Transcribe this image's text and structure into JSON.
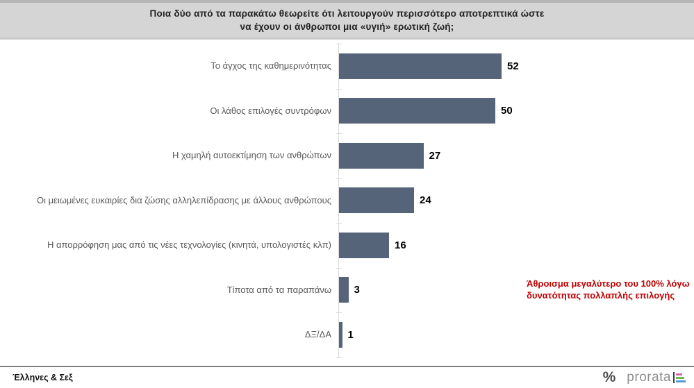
{
  "title": {
    "line1": "Ποια  δύο από τα παρακάτω θεωρείτε ότι λειτουργούν περισσότερο αποτρεπτικά ώστε",
    "line2": "να έχουν οι άνθρωποι μια «υγιή» ερωτική ζωή;"
  },
  "chart_data": {
    "type": "bar",
    "orientation": "horizontal",
    "title": "Ποια δύο από τα παρακάτω θεωρείτε ότι λειτουργούν περισσότερο αποτρεπτικά ώστε να έχουν οι άνθρωποι μια «υγιή» ερωτική ζωή;",
    "categories": [
      "Το άγχος της καθημερινότητας",
      "Οι λάθος επιλογές συντρόφων",
      "Η χαμηλή αυτοεκτίμηση των ανθρώπων",
      "Οι μειωμένες ευκαιρίες δια ζώσης αλληλεπίδρασης με άλλους ανθρώπους",
      "Η απορρόφηση μας από τις νέες τεχνολογίες (κινητά, υπολογιστές κλπ)",
      "Τίποτα από τα παραπάνω",
      "ΔΞ/ΔΑ"
    ],
    "values": [
      52,
      50,
      27,
      24,
      16,
      3,
      1
    ],
    "xlim": [
      0,
      57
    ],
    "grid": false,
    "legend": false,
    "value_labels": true,
    "bar_color": "#566479",
    "category_label_color": "#595959",
    "value_label_color": "#000000",
    "annotation": "Άθροισμα μεγαλύτερο του 100% λόγω δυνατότητας πολλαπλής επιλογής"
  },
  "annotation": {
    "line1": "Άθροισμα μεγαλύτερο του 100% λόγω",
    "line2": "δυνατότητας πολλαπλής επιλογής",
    "color": "#c00000"
  },
  "footer": {
    "source_label": "Έλληνες & Σεξ",
    "brand": {
      "percent_mark": "%",
      "name": "prorata",
      "logo_colors": [
        "#d4679f",
        "#72b84d",
        "#4f9bd5"
      ]
    }
  }
}
